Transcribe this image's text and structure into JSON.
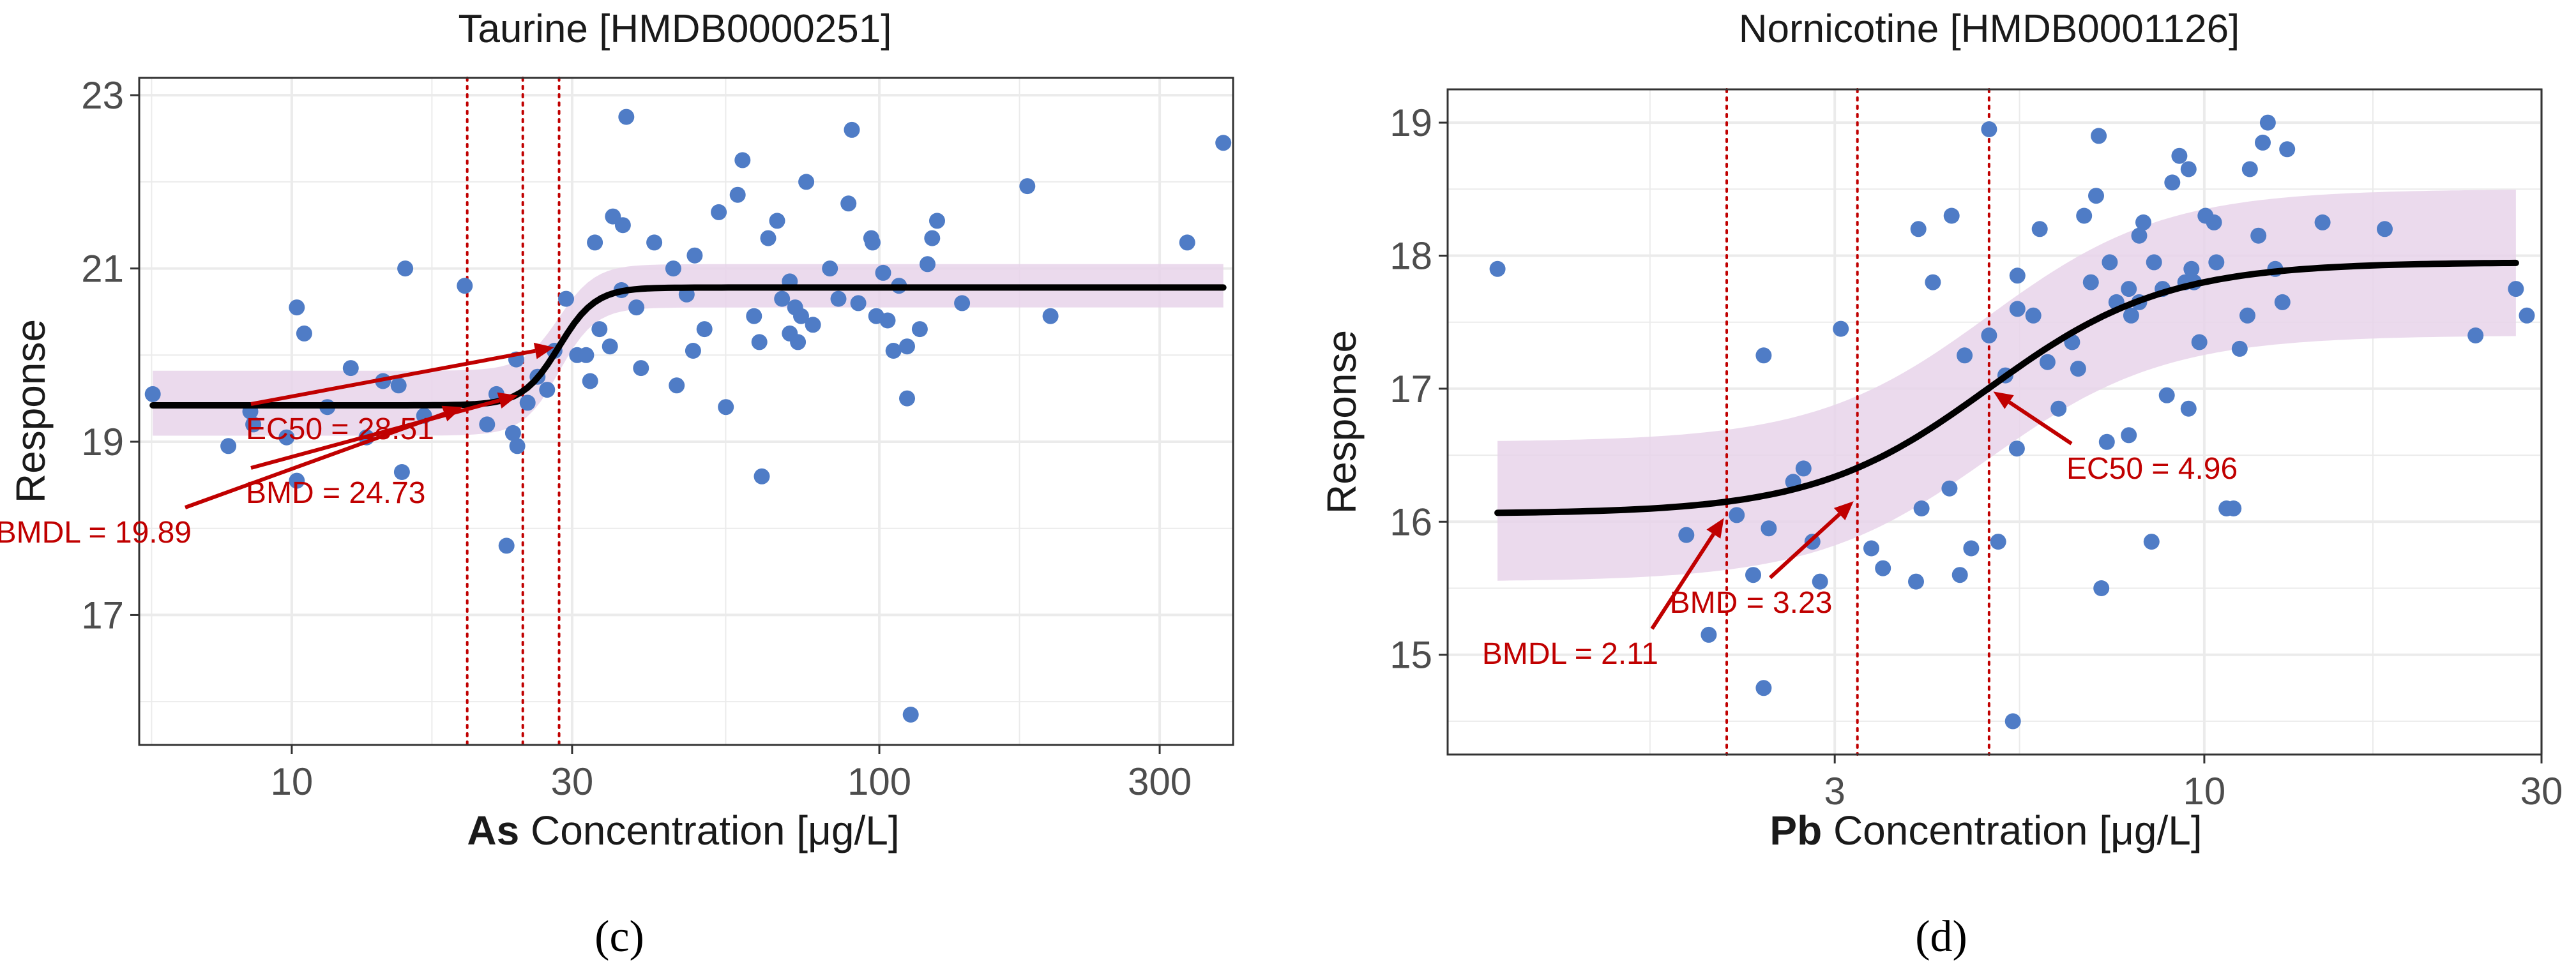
{
  "figure": {
    "panel_labels": [
      "(c)",
      "(d)"
    ]
  },
  "colors": {
    "point": "#4f7cc6",
    "curve": "#000000",
    "band": "#e7d3ea",
    "annotation": "#c00000",
    "grid": "#ebebeb",
    "panel_border": "#333333"
  },
  "chart_data": [
    {
      "type": "scatter",
      "title": "Taurine [HMDB0000251]",
      "xlabel_bold": "As",
      "xlabel_rest": " Concentration [μg/L]",
      "ylabel": "Response",
      "x_scale": "log10",
      "xlim": [
        5.5,
        400
      ],
      "ylim": [
        15.5,
        23.2
      ],
      "x_ticks": [
        10,
        30,
        100,
        300
      ],
      "x_tick_labels": [
        "10",
        "30",
        "100",
        "300"
      ],
      "y_ticks": [
        17,
        19,
        21,
        23
      ],
      "y_tick_labels": [
        "17",
        "19",
        "21",
        "23"
      ],
      "grid": true,
      "legend": "none",
      "points": [
        [
          5.8,
          19.55
        ],
        [
          7.8,
          18.95
        ],
        [
          8.5,
          19.35
        ],
        [
          8.6,
          19.2
        ],
        [
          9.8,
          19.05
        ],
        [
          10.2,
          20.55
        ],
        [
          10.5,
          20.25
        ],
        [
          10.2,
          18.55
        ],
        [
          11.5,
          19.4
        ],
        [
          12.6,
          19.85
        ],
        [
          13.4,
          19.05
        ],
        [
          14.3,
          19.7
        ],
        [
          15.2,
          19.65
        ],
        [
          15.6,
          21.0
        ],
        [
          15.4,
          18.65
        ],
        [
          16.8,
          19.3
        ],
        [
          19.7,
          20.8
        ],
        [
          21.5,
          19.2
        ],
        [
          22.3,
          19.55
        ],
        [
          23.2,
          17.8
        ],
        [
          23.8,
          19.1
        ],
        [
          24.2,
          18.95
        ],
        [
          24.1,
          19.95
        ],
        [
          25.2,
          19.45
        ],
        [
          26.2,
          19.75
        ],
        [
          27.2,
          19.6
        ],
        [
          28.0,
          20.05
        ],
        [
          29.3,
          20.65
        ],
        [
          30.6,
          20.0
        ],
        [
          31.7,
          20.0
        ],
        [
          32.8,
          21.3
        ],
        [
          33.4,
          20.3
        ],
        [
          32.2,
          19.7
        ],
        [
          34.8,
          20.1
        ],
        [
          35.2,
          21.6
        ],
        [
          36.4,
          20.75
        ],
        [
          36.6,
          21.5
        ],
        [
          37.1,
          22.75
        ],
        [
          38.6,
          20.55
        ],
        [
          39.3,
          19.85
        ],
        [
          41.4,
          21.3
        ],
        [
          44.6,
          21.0
        ],
        [
          45.2,
          19.65
        ],
        [
          47.0,
          20.7
        ],
        [
          48.2,
          20.05
        ],
        [
          48.5,
          21.15
        ],
        [
          50.4,
          20.3
        ],
        [
          53.3,
          21.65
        ],
        [
          54.8,
          19.4
        ],
        [
          57.4,
          21.85
        ],
        [
          58.5,
          22.25
        ],
        [
          61.2,
          20.45
        ],
        [
          62.5,
          20.15
        ],
        [
          63.1,
          18.6
        ],
        [
          64.7,
          21.35
        ],
        [
          67.0,
          21.55
        ],
        [
          68.3,
          20.65
        ],
        [
          70.4,
          20.85
        ],
        [
          70.4,
          20.25
        ],
        [
          71.9,
          20.55
        ],
        [
          72.7,
          20.15
        ],
        [
          73.6,
          20.45
        ],
        [
          75.1,
          22.0
        ],
        [
          77.1,
          20.35
        ],
        [
          82.4,
          21.0
        ],
        [
          85.2,
          20.65
        ],
        [
          88.6,
          21.75
        ],
        [
          89.8,
          22.6
        ],
        [
          92.1,
          20.6
        ],
        [
          96.9,
          21.35
        ],
        [
          97.4,
          21.3
        ],
        [
          98.8,
          20.45
        ],
        [
          101.5,
          20.95
        ],
        [
          103.3,
          20.4
        ],
        [
          105.7,
          20.05
        ],
        [
          108.0,
          20.8
        ],
        [
          111.5,
          20.1
        ],
        [
          111.5,
          19.5
        ],
        [
          113.1,
          15.85
        ],
        [
          117.2,
          20.3
        ],
        [
          120.8,
          21.05
        ],
        [
          123.0,
          21.35
        ],
        [
          125.4,
          21.55
        ],
        [
          138.3,
          20.6
        ],
        [
          178.6,
          21.95
        ],
        [
          195.6,
          20.45
        ],
        [
          334.2,
          21.3
        ],
        [
          385.0,
          22.45
        ]
      ],
      "curve": {
        "bottom": 19.42,
        "top": 20.78,
        "ec50": 28.51,
        "hill": 14,
        "x_range": [
          5.8,
          385
        ]
      },
      "ci_band": {
        "lower_bottom": 19.07,
        "upper_bottom": 19.82,
        "lower_top": 20.55,
        "upper_top": 21.05
      },
      "vlines": [
        19.89,
        24.73,
        28.51
      ],
      "annotations": [
        {
          "text": "BMDL = 19.89",
          "target": [
            19.89,
            19.42
          ]
        },
        {
          "text": "BMD = 24.73",
          "target": [
            24.73,
            19.55
          ]
        },
        {
          "text": "EC50 = 28.51",
          "target": [
            28.51,
            20.1
          ]
        }
      ]
    },
    {
      "type": "scatter",
      "title": "Nornicotine [HMDB0001126]",
      "xlabel_bold": "Pb",
      "xlabel_rest": " Concentration [μg/L]",
      "ylabel": "Response",
      "x_scale": "log10",
      "xlim": [
        0.85,
        30
      ],
      "ylim": [
        14.25,
        19.25
      ],
      "x_ticks": [
        3,
        10,
        30
      ],
      "x_tick_labels": [
        "3",
        "10",
        "30"
      ],
      "y_ticks": [
        15,
        16,
        17,
        18,
        19
      ],
      "y_tick_labels": [
        "15",
        "16",
        "17",
        "18",
        "19"
      ],
      "grid": true,
      "legend": "none",
      "points": [
        [
          1.0,
          17.9
        ],
        [
          1.85,
          15.9
        ],
        [
          1.99,
          15.15
        ],
        [
          2.18,
          16.05
        ],
        [
          2.3,
          15.6
        ],
        [
          2.38,
          14.75
        ],
        [
          2.38,
          17.25
        ],
        [
          2.42,
          15.95
        ],
        [
          2.62,
          16.3
        ],
        [
          2.71,
          16.4
        ],
        [
          2.79,
          15.85
        ],
        [
          2.86,
          15.55
        ],
        [
          3.06,
          17.45
        ],
        [
          3.38,
          15.8
        ],
        [
          3.51,
          15.65
        ],
        [
          3.91,
          15.55
        ],
        [
          3.94,
          18.2
        ],
        [
          3.98,
          16.1
        ],
        [
          4.13,
          17.8
        ],
        [
          4.36,
          16.25
        ],
        [
          4.39,
          18.3
        ],
        [
          4.51,
          15.6
        ],
        [
          4.58,
          17.25
        ],
        [
          4.68,
          15.8
        ],
        [
          4.96,
          17.4
        ],
        [
          4.96,
          18.95
        ],
        [
          5.11,
          15.85
        ],
        [
          5.23,
          17.1
        ],
        [
          5.36,
          14.5
        ],
        [
          5.43,
          16.55
        ],
        [
          5.44,
          17.85
        ],
        [
          5.44,
          17.6
        ],
        [
          5.73,
          17.55
        ],
        [
          5.85,
          18.2
        ],
        [
          6.0,
          17.2
        ],
        [
          6.22,
          16.85
        ],
        [
          6.5,
          17.35
        ],
        [
          6.63,
          17.15
        ],
        [
          6.76,
          18.3
        ],
        [
          6.91,
          17.8
        ],
        [
          7.03,
          18.45
        ],
        [
          7.09,
          18.9
        ],
        [
          7.15,
          15.5
        ],
        [
          7.28,
          16.6
        ],
        [
          7.35,
          17.95
        ],
        [
          7.51,
          17.65
        ],
        [
          7.82,
          16.65
        ],
        [
          7.82,
          17.75
        ],
        [
          7.88,
          17.55
        ],
        [
          8.09,
          17.65
        ],
        [
          8.09,
          18.15
        ],
        [
          8.2,
          18.25
        ],
        [
          8.42,
          15.85
        ],
        [
          8.49,
          17.95
        ],
        [
          8.73,
          17.75
        ],
        [
          8.85,
          16.95
        ],
        [
          9.01,
          18.55
        ],
        [
          9.22,
          18.75
        ],
        [
          9.4,
          17.8
        ],
        [
          9.5,
          18.65
        ],
        [
          9.5,
          16.85
        ],
        [
          9.59,
          17.9
        ],
        [
          9.67,
          17.8
        ],
        [
          9.84,
          17.35
        ],
        [
          10.04,
          18.3
        ],
        [
          10.32,
          18.25
        ],
        [
          10.4,
          17.95
        ],
        [
          10.75,
          16.1
        ],
        [
          11.0,
          16.1
        ],
        [
          11.22,
          17.3
        ],
        [
          11.51,
          17.55
        ],
        [
          11.6,
          18.65
        ],
        [
          11.93,
          18.15
        ],
        [
          12.1,
          18.85
        ],
        [
          12.3,
          19.0
        ],
        [
          12.6,
          17.9
        ],
        [
          12.9,
          17.65
        ],
        [
          13.1,
          18.8
        ],
        [
          14.7,
          18.25
        ],
        [
          18.0,
          18.2
        ],
        [
          24.2,
          17.4
        ],
        [
          27.6,
          17.75
        ],
        [
          28.6,
          17.55
        ]
      ],
      "curve": {
        "bottom": 16.06,
        "top": 17.95,
        "ec50": 4.96,
        "hill": 3.5,
        "x_range": [
          1.0,
          27.6
        ]
      },
      "ci_band": {
        "lower_bottom": 15.55,
        "upper_bottom": 16.6,
        "lower_top": 17.4,
        "upper_top": 18.5
      },
      "vlines": [
        2.11,
        3.23,
        4.96
      ],
      "annotations": [
        {
          "text": "BMDL = 2.11",
          "target": [
            2.11,
            16.06
          ]
        },
        {
          "text": "BMD = 3.23",
          "target": [
            3.23,
            16.18
          ]
        },
        {
          "text": "EC50 = 4.96",
          "target": [
            4.96,
            17.0
          ]
        }
      ]
    }
  ]
}
